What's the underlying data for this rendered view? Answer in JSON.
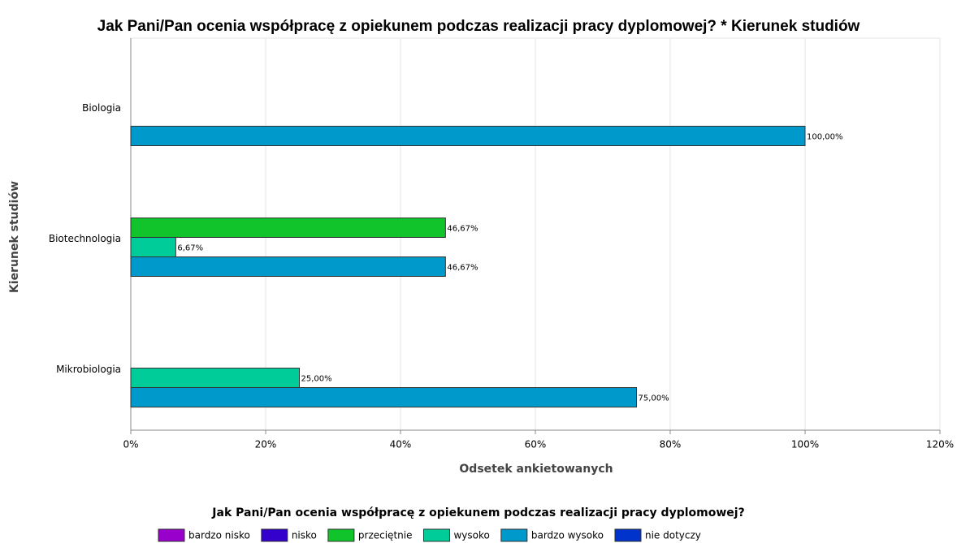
{
  "chart_data": {
    "type": "bar",
    "orientation": "horizontal",
    "title": "Jak Pani/Pan ocenia współpracę z opiekunem podczas realizacji pracy dyplomowej? * Kierunek studiów",
    "x_label": "Odsetek ankietowanych",
    "y_label": "Kierunek studiów",
    "legend_title": "Jak Pani/Pan ocenia współpracę z opiekunem podczas realizacji pracy dyplomowej?",
    "legend": "bottom",
    "grid": true,
    "categories": [
      "Biologia",
      "Biotechnologia",
      "Mikrobiologia"
    ],
    "series": [
      {
        "name": "bardzo nisko",
        "color": "#9900cc",
        "values": [
          null,
          null,
          null
        ],
        "value_labels": [
          null,
          null,
          null
        ]
      },
      {
        "name": "nisko",
        "color": "#3300cc",
        "values": [
          null,
          null,
          null
        ],
        "value_labels": [
          null,
          null,
          null
        ]
      },
      {
        "name": "przeciętnie",
        "color": "#11c42b",
        "values": [
          null,
          46.67,
          null
        ],
        "value_labels": [
          null,
          "46,67%",
          null
        ]
      },
      {
        "name": "wysoko",
        "color": "#00cc99",
        "values": [
          null,
          6.67,
          25
        ],
        "value_labels": [
          null,
          "6,67%",
          "25,00%"
        ]
      },
      {
        "name": "bardzo wysoko",
        "color": "#0099cc",
        "values": [
          100,
          46.67,
          75
        ],
        "value_labels": [
          "100,00%",
          "46,67%",
          "75,00%"
        ]
      },
      {
        "name": "nie dotyczy",
        "color": "#0033cc",
        "values": [
          null,
          null,
          null
        ],
        "value_labels": [
          null,
          null,
          null
        ]
      }
    ],
    "xlim": [
      0,
      120
    ],
    "xticks": [
      {
        "value": 0,
        "label": "0%"
      },
      {
        "value": 20,
        "label": "20%"
      },
      {
        "value": 40,
        "label": "40%"
      },
      {
        "value": 60,
        "label": "60%"
      },
      {
        "value": 80,
        "label": "80%"
      },
      {
        "value": 100,
        "label": "100%"
      },
      {
        "value": 120,
        "label": "120%"
      }
    ]
  }
}
